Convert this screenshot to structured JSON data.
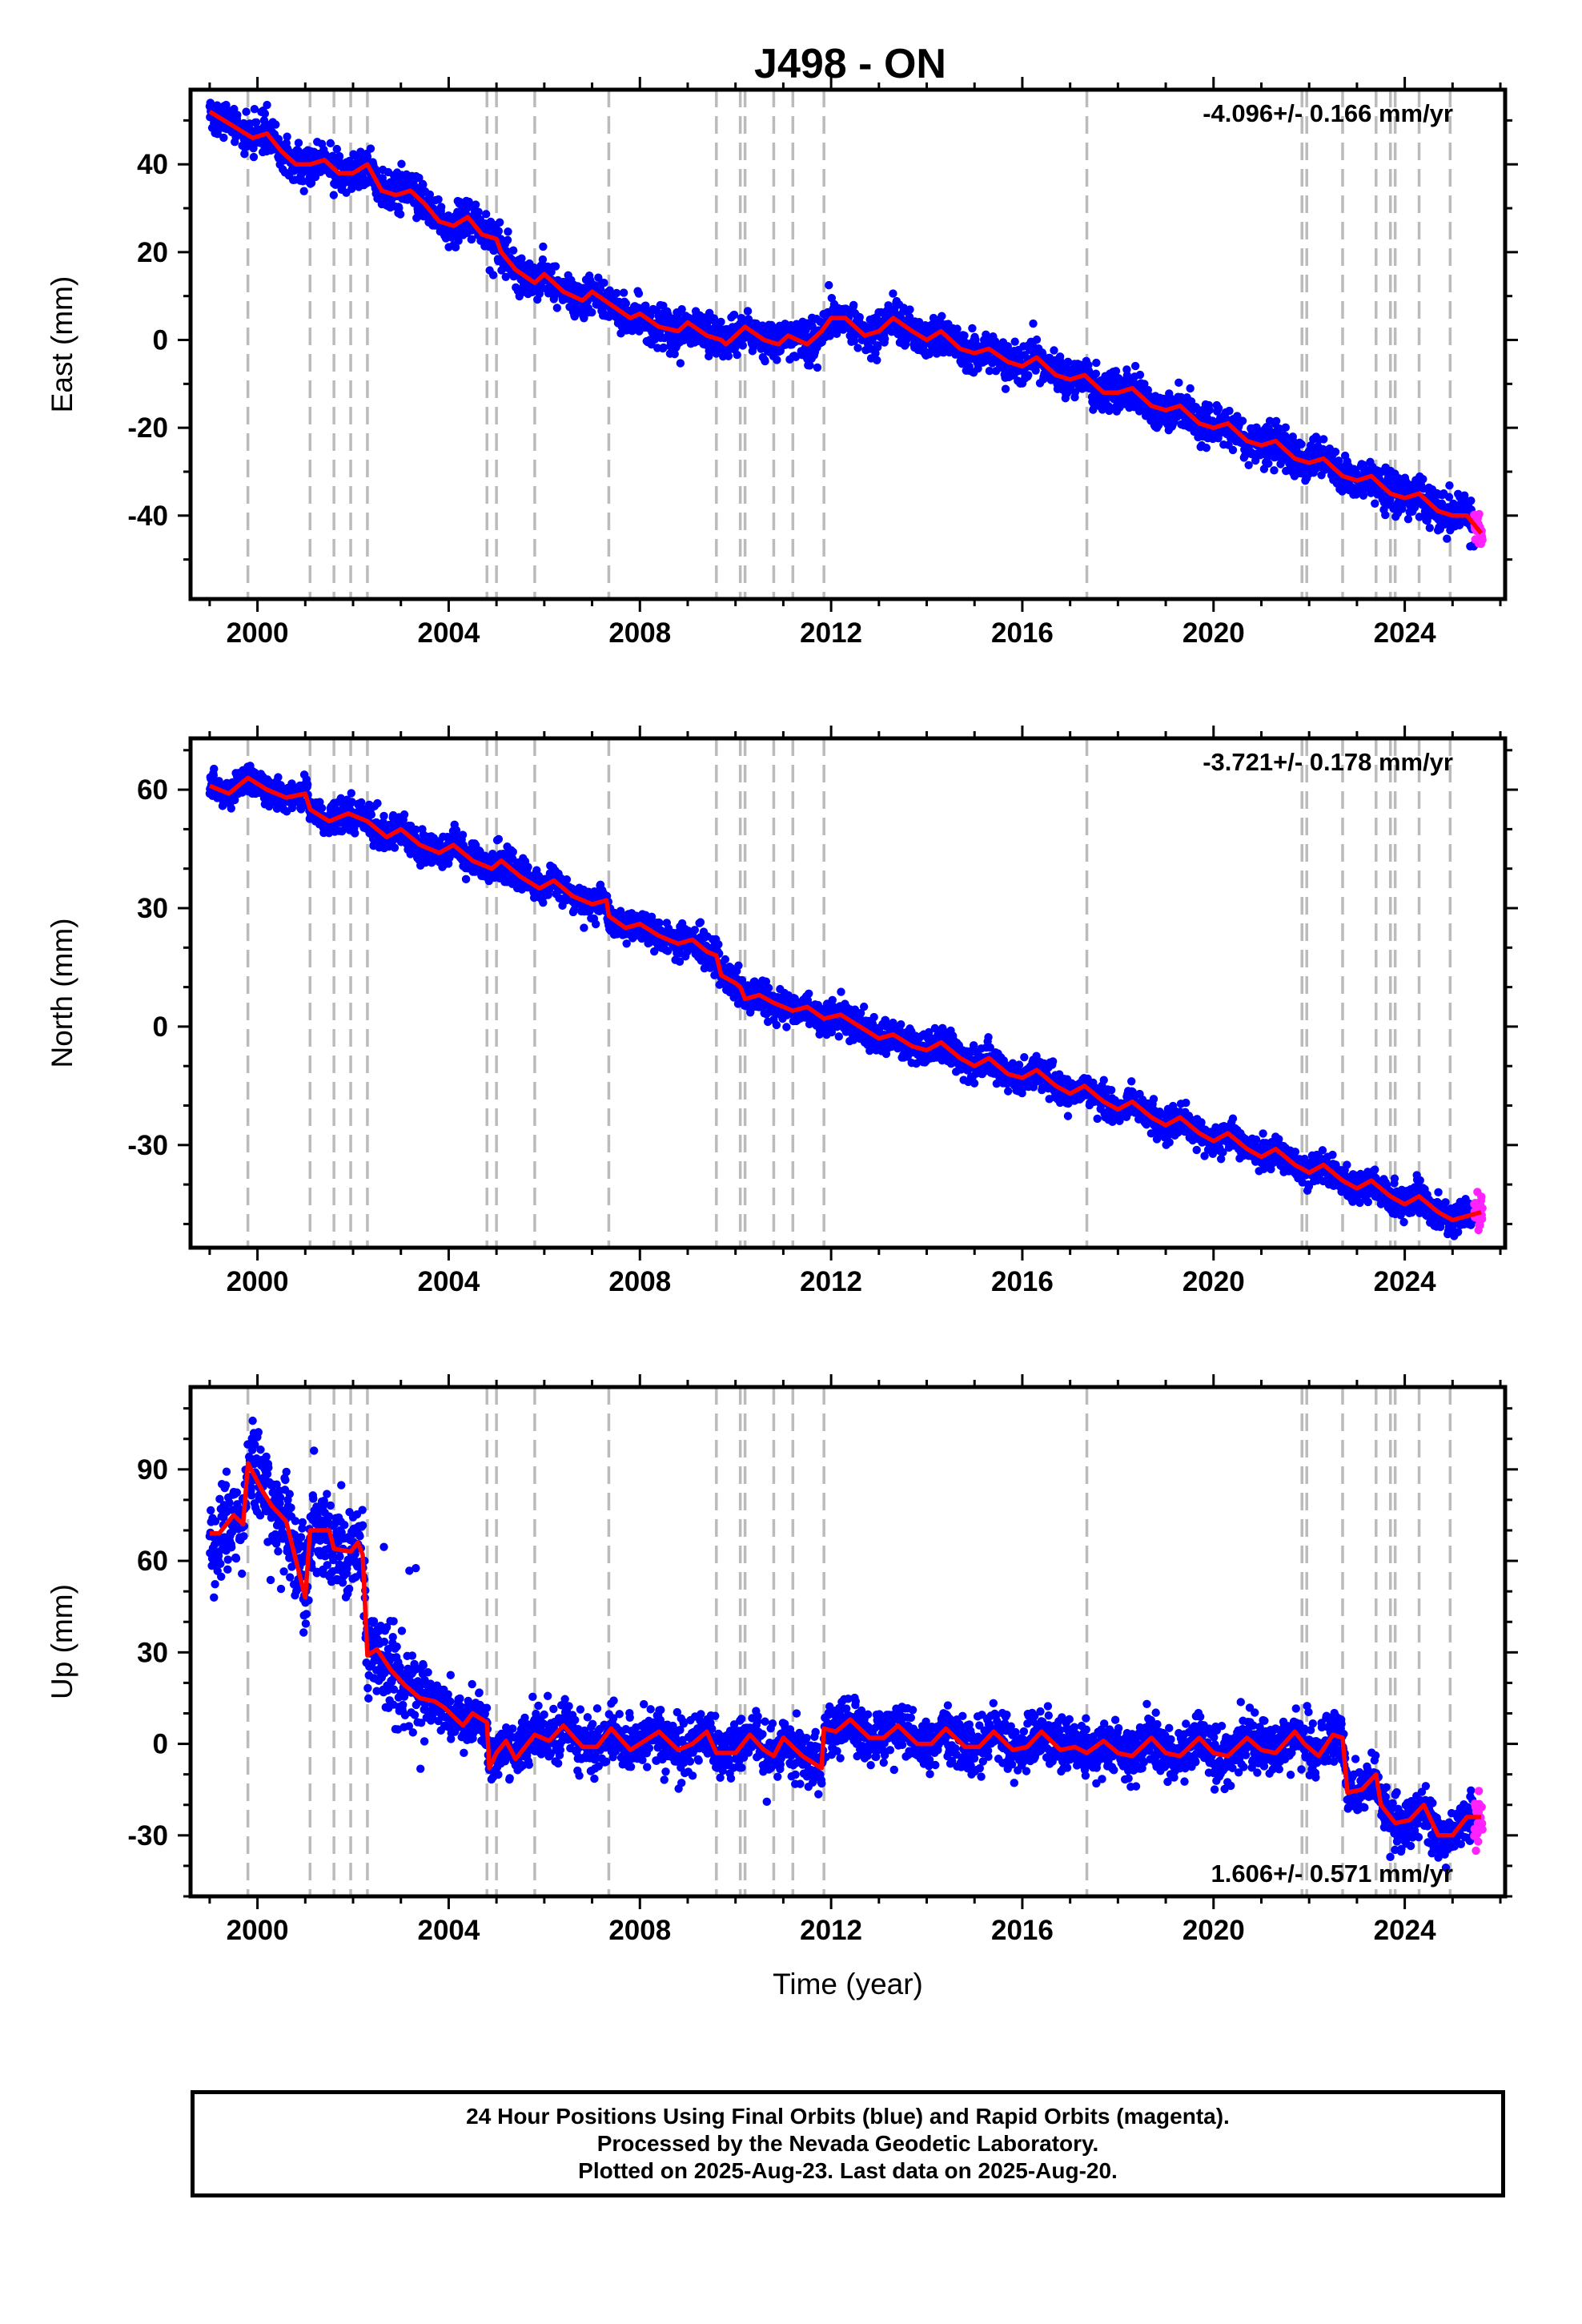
{
  "title": "J498 - ON",
  "xlabel": "Time (year)",
  "colors": {
    "final_orbits": "#0000ff",
    "rapid_orbits": "#ff22ff",
    "model": "#ff0000",
    "event_lines": "#bbbbbb"
  },
  "caption": {
    "line1": "24 Hour Positions Using Final Orbits (blue) and Rapid Orbits (magenta).",
    "line2": "Processed by the Nevada Geodetic Laboratory.",
    "line3": "Plotted on 2025-Aug-23. Last data on 2025-Aug-20."
  },
  "chart_data": [
    {
      "type": "scatter",
      "component": "East",
      "ylabel": "East (mm)",
      "rate_label": "-4.096+/- 0.166 mm/yr",
      "rate_label_position": "top-right",
      "xlim": [
        1998.6,
        2026.1
      ],
      "ylim": [
        -59,
        57
      ],
      "x_ticks": [
        2000,
        2004,
        2008,
        2012,
        2016,
        2020,
        2024
      ],
      "y_ticks": [
        -40,
        -20,
        0,
        20,
        40
      ],
      "data_start": 1999.0,
      "data_end": 2025.63,
      "rapid_start": 2025.45,
      "event_lines": [
        1999.8,
        2001.1,
        2001.6,
        2001.95,
        2002.3,
        2004.8,
        2005.0,
        2005.8,
        2007.35,
        2009.6,
        2010.1,
        2010.2,
        2010.8,
        2011.2,
        2011.85,
        2017.35,
        2021.85,
        2021.95,
        2022.7,
        2023.4,
        2023.7,
        2023.8,
        2024.3,
        2024.95
      ],
      "model_line": [
        [
          1999.0,
          52
        ],
        [
          1999.3,
          50
        ],
        [
          1999.6,
          48
        ],
        [
          1999.9,
          46
        ],
        [
          2000.2,
          47
        ],
        [
          2000.5,
          43
        ],
        [
          2000.8,
          40
        ],
        [
          2001.1,
          40
        ],
        [
          2001.4,
          41
        ],
        [
          2001.7,
          38
        ],
        [
          2002.0,
          38
        ],
        [
          2002.3,
          40
        ],
        [
          2002.6,
          34
        ],
        [
          2002.9,
          33
        ],
        [
          2003.2,
          34
        ],
        [
          2003.5,
          31
        ],
        [
          2003.8,
          27
        ],
        [
          2004.1,
          26
        ],
        [
          2004.4,
          28
        ],
        [
          2004.7,
          24
        ],
        [
          2005.0,
          23
        ],
        [
          2005.1,
          20
        ],
        [
          2005.4,
          16
        ],
        [
          2005.8,
          13
        ],
        [
          2006.0,
          15
        ],
        [
          2006.4,
          11
        ],
        [
          2006.8,
          9
        ],
        [
          2007.0,
          11
        ],
        [
          2007.4,
          8
        ],
        [
          2007.8,
          5
        ],
        [
          2008.0,
          6
        ],
        [
          2008.4,
          3
        ],
        [
          2008.8,
          2
        ],
        [
          2009.0,
          4
        ],
        [
          2009.4,
          1
        ],
        [
          2009.7,
          0
        ],
        [
          2009.8,
          -1
        ],
        [
          2010.1,
          2
        ],
        [
          2010.2,
          3
        ],
        [
          2010.6,
          0
        ],
        [
          2010.9,
          -1
        ],
        [
          2011.1,
          1
        ],
        [
          2011.5,
          -1
        ],
        [
          2011.8,
          2
        ],
        [
          2012.0,
          5
        ],
        [
          2012.3,
          5
        ],
        [
          2012.7,
          1
        ],
        [
          2013.0,
          2
        ],
        [
          2013.3,
          5
        ],
        [
          2013.7,
          2
        ],
        [
          2014.0,
          0
        ],
        [
          2014.3,
          2
        ],
        [
          2014.7,
          -2
        ],
        [
          2015.0,
          -3
        ],
        [
          2015.3,
          -2
        ],
        [
          2015.7,
          -5
        ],
        [
          2016.0,
          -6
        ],
        [
          2016.3,
          -4
        ],
        [
          2016.7,
          -8
        ],
        [
          2017.0,
          -9
        ],
        [
          2017.3,
          -8
        ],
        [
          2017.7,
          -12
        ],
        [
          2018.0,
          -12
        ],
        [
          2018.3,
          -11
        ],
        [
          2018.7,
          -15
        ],
        [
          2019.0,
          -16
        ],
        [
          2019.3,
          -15
        ],
        [
          2019.7,
          -19
        ],
        [
          2020.0,
          -20
        ],
        [
          2020.3,
          -19
        ],
        [
          2020.7,
          -23
        ],
        [
          2021.0,
          -24
        ],
        [
          2021.3,
          -23
        ],
        [
          2021.7,
          -27
        ],
        [
          2022.0,
          -28
        ],
        [
          2022.3,
          -27
        ],
        [
          2022.7,
          -31
        ],
        [
          2023.0,
          -32
        ],
        [
          2023.3,
          -31
        ],
        [
          2023.7,
          -35
        ],
        [
          2024.0,
          -36
        ],
        [
          2024.3,
          -35
        ],
        [
          2024.7,
          -39
        ],
        [
          2025.0,
          -40
        ],
        [
          2025.3,
          -40
        ],
        [
          2025.6,
          -44
        ]
      ]
    },
    {
      "type": "scatter",
      "component": "North",
      "ylabel": "North (mm)",
      "rate_label": "-3.721+/- 0.178 mm/yr",
      "rate_label_position": "top-right",
      "xlim": [
        1998.6,
        2026.1
      ],
      "ylim": [
        -56,
        73
      ],
      "x_ticks": [
        2000,
        2004,
        2008,
        2012,
        2016,
        2020,
        2024
      ],
      "y_ticks": [
        -30,
        0,
        30,
        60
      ],
      "data_start": 1999.0,
      "data_end": 2025.63,
      "rapid_start": 2025.45,
      "event_lines": [
        1999.8,
        2001.1,
        2001.6,
        2001.95,
        2002.3,
        2004.8,
        2005.0,
        2005.8,
        2007.35,
        2009.6,
        2010.1,
        2010.2,
        2010.8,
        2011.2,
        2011.85,
        2017.35,
        2021.85,
        2021.95,
        2022.7,
        2023.4,
        2023.7,
        2023.8,
        2024.3,
        2024.95
      ],
      "model_line": [
        [
          1999.0,
          61
        ],
        [
          1999.4,
          59
        ],
        [
          1999.8,
          63
        ],
        [
          2000.2,
          60
        ],
        [
          2000.6,
          58
        ],
        [
          2001.0,
          59
        ],
        [
          2001.1,
          55
        ],
        [
          2001.5,
          52
        ],
        [
          2001.9,
          54
        ],
        [
          2002.3,
          52
        ],
        [
          2002.7,
          48
        ],
        [
          2003.0,
          50
        ],
        [
          2003.4,
          46
        ],
        [
          2003.8,
          44
        ],
        [
          2004.1,
          46
        ],
        [
          2004.5,
          42
        ],
        [
          2004.9,
          40
        ],
        [
          2005.1,
          42
        ],
        [
          2005.5,
          38
        ],
        [
          2005.9,
          35
        ],
        [
          2006.2,
          37
        ],
        [
          2006.6,
          33
        ],
        [
          2007.0,
          31
        ],
        [
          2007.3,
          32
        ],
        [
          2007.35,
          28
        ],
        [
          2007.7,
          25
        ],
        [
          2008.0,
          26
        ],
        [
          2008.4,
          23
        ],
        [
          2008.8,
          21
        ],
        [
          2009.1,
          22
        ],
        [
          2009.4,
          19
        ],
        [
          2009.6,
          18
        ],
        [
          2009.7,
          13
        ],
        [
          2010.0,
          11
        ],
        [
          2010.1,
          10
        ],
        [
          2010.2,
          7
        ],
        [
          2010.5,
          8
        ],
        [
          2010.8,
          6
        ],
        [
          2011.2,
          4
        ],
        [
          2011.5,
          5
        ],
        [
          2011.85,
          2
        ],
        [
          2012.2,
          3
        ],
        [
          2012.6,
          0
        ],
        [
          2013.0,
          -3
        ],
        [
          2013.3,
          -2
        ],
        [
          2013.7,
          -5
        ],
        [
          2014.0,
          -6
        ],
        [
          2014.3,
          -4
        ],
        [
          2014.7,
          -8
        ],
        [
          2015.0,
          -10
        ],
        [
          2015.3,
          -8
        ],
        [
          2015.7,
          -12
        ],
        [
          2016.0,
          -13
        ],
        [
          2016.3,
          -11
        ],
        [
          2016.7,
          -15
        ],
        [
          2017.0,
          -17
        ],
        [
          2017.3,
          -15
        ],
        [
          2017.7,
          -19
        ],
        [
          2018.0,
          -21
        ],
        [
          2018.3,
          -19
        ],
        [
          2018.7,
          -23
        ],
        [
          2019.0,
          -25
        ],
        [
          2019.3,
          -23
        ],
        [
          2019.7,
          -27
        ],
        [
          2020.0,
          -29
        ],
        [
          2020.3,
          -27
        ],
        [
          2020.7,
          -31
        ],
        [
          2021.0,
          -33
        ],
        [
          2021.3,
          -31
        ],
        [
          2021.7,
          -35
        ],
        [
          2022.0,
          -37
        ],
        [
          2022.3,
          -35
        ],
        [
          2022.7,
          -39
        ],
        [
          2023.0,
          -41
        ],
        [
          2023.3,
          -39
        ],
        [
          2023.7,
          -43
        ],
        [
          2024.0,
          -45
        ],
        [
          2024.3,
          -43
        ],
        [
          2024.7,
          -47
        ],
        [
          2025.0,
          -49
        ],
        [
          2025.3,
          -48
        ],
        [
          2025.6,
          -47
        ]
      ]
    },
    {
      "type": "scatter",
      "component": "Up",
      "ylabel": "Up (mm)",
      "rate_label": "1.606+/- 0.571 mm/yr",
      "rate_label_position": "bottom-right",
      "xlim": [
        1998.6,
        2026.1
      ],
      "ylim": [
        -50,
        117
      ],
      "x_ticks": [
        2000,
        2004,
        2008,
        2012,
        2016,
        2020,
        2024
      ],
      "y_ticks": [
        -30,
        0,
        30,
        60,
        90
      ],
      "data_start": 1999.0,
      "data_end": 2025.63,
      "rapid_start": 2025.45,
      "event_lines": [
        1999.8,
        2001.1,
        2001.6,
        2001.95,
        2002.3,
        2004.8,
        2005.0,
        2005.8,
        2007.35,
        2009.6,
        2010.1,
        2010.2,
        2010.8,
        2011.2,
        2011.85,
        2017.35,
        2021.85,
        2021.95,
        2022.7,
        2023.4,
        2023.7,
        2023.8,
        2024.3,
        2024.95
      ],
      "model_line": [
        [
          1999.0,
          69
        ],
        [
          1999.2,
          69
        ],
        [
          1999.5,
          75
        ],
        [
          1999.7,
          72
        ],
        [
          1999.8,
          92
        ],
        [
          2000.1,
          83
        ],
        [
          2000.3,
          78
        ],
        [
          2000.6,
          73
        ],
        [
          2001.0,
          48
        ],
        [
          2001.1,
          70
        ],
        [
          2001.5,
          70
        ],
        [
          2001.6,
          64
        ],
        [
          2001.95,
          63
        ],
        [
          2002.1,
          66
        ],
        [
          2002.2,
          62
        ],
        [
          2002.3,
          29
        ],
        [
          2002.5,
          31
        ],
        [
          2002.8,
          24
        ],
        [
          2003.1,
          19
        ],
        [
          2003.4,
          15
        ],
        [
          2003.7,
          14
        ],
        [
          2003.9,
          12
        ],
        [
          2004.1,
          9
        ],
        [
          2004.3,
          6
        ],
        [
          2004.5,
          10
        ],
        [
          2004.8,
          7
        ],
        [
          2004.85,
          -8
        ],
        [
          2005.0,
          -3
        ],
        [
          2005.2,
          1
        ],
        [
          2005.4,
          -5
        ],
        [
          2005.8,
          3
        ],
        [
          2006.1,
          1
        ],
        [
          2006.4,
          6
        ],
        [
          2006.8,
          -1
        ],
        [
          2007.1,
          -1
        ],
        [
          2007.4,
          5
        ],
        [
          2007.8,
          -2
        ],
        [
          2008.1,
          1
        ],
        [
          2008.4,
          4
        ],
        [
          2008.8,
          -2
        ],
        [
          2009.1,
          0
        ],
        [
          2009.4,
          4
        ],
        [
          2009.6,
          -3
        ],
        [
          2010.0,
          -3
        ],
        [
          2010.1,
          -1
        ],
        [
          2010.3,
          3
        ],
        [
          2010.6,
          -2
        ],
        [
          2010.8,
          -4
        ],
        [
          2011.0,
          2
        ],
        [
          2011.4,
          -4
        ],
        [
          2011.8,
          -8
        ],
        [
          2011.85,
          5
        ],
        [
          2012.1,
          4
        ],
        [
          2012.4,
          8
        ],
        [
          2012.8,
          2
        ],
        [
          2013.1,
          2
        ],
        [
          2013.4,
          6
        ],
        [
          2013.8,
          0
        ],
        [
          2014.1,
          0
        ],
        [
          2014.4,
          5
        ],
        [
          2014.8,
          -1
        ],
        [
          2015.1,
          -1
        ],
        [
          2015.4,
          4
        ],
        [
          2015.8,
          -2
        ],
        [
          2016.1,
          -1
        ],
        [
          2016.4,
          4
        ],
        [
          2016.8,
          -2
        ],
        [
          2017.1,
          -1
        ],
        [
          2017.35,
          -3
        ],
        [
          2017.7,
          1
        ],
        [
          2018.0,
          -3
        ],
        [
          2018.3,
          -4
        ],
        [
          2018.7,
          2
        ],
        [
          2019.0,
          -3
        ],
        [
          2019.3,
          -4
        ],
        [
          2019.7,
          2
        ],
        [
          2020.0,
          -3
        ],
        [
          2020.3,
          -4
        ],
        [
          2020.7,
          2
        ],
        [
          2021.0,
          -2
        ],
        [
          2021.3,
          -3
        ],
        [
          2021.7,
          4
        ],
        [
          2021.9,
          0
        ],
        [
          2022.2,
          -4
        ],
        [
          2022.5,
          3
        ],
        [
          2022.7,
          2
        ],
        [
          2022.8,
          -16
        ],
        [
          2023.1,
          -15
        ],
        [
          2023.4,
          -10
        ],
        [
          2023.5,
          -20
        ],
        [
          2023.8,
          -26
        ],
        [
          2024.1,
          -25
        ],
        [
          2024.4,
          -20
        ],
        [
          2024.7,
          -30
        ],
        [
          2025.0,
          -30
        ],
        [
          2025.3,
          -24
        ],
        [
          2025.6,
          -24
        ]
      ]
    }
  ]
}
